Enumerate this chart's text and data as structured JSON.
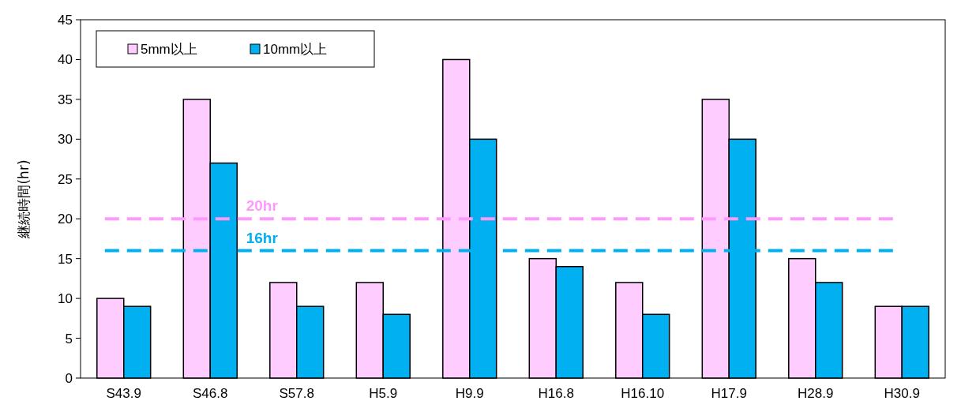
{
  "chart_data": {
    "type": "bar",
    "ylabel": "継続時間(hr)",
    "categories": [
      "S43.9",
      "S46.8",
      "S57.8",
      "H5.9",
      "H9.9",
      "H16.8",
      "H16.10",
      "H17.9",
      "H28.9",
      "H30.9"
    ],
    "series": [
      {
        "name": "5mm以上",
        "color": "#ffccff",
        "values": [
          10,
          35,
          12,
          12,
          40,
          15,
          12,
          35,
          15,
          9
        ]
      },
      {
        "name": "10mm以上",
        "color": "#00b0f0",
        "values": [
          9,
          27,
          9,
          8,
          30,
          14,
          8,
          30,
          12,
          9
        ]
      }
    ],
    "ylim": [
      0,
      45
    ],
    "yticks": [
      0,
      5,
      10,
      15,
      20,
      25,
      30,
      35,
      40,
      45
    ],
    "grid": false,
    "legend": "top left",
    "ref_lines": [
      {
        "axis": "y",
        "value": 20,
        "label": "20hr",
        "color": "#ff99ff",
        "line_style": "dashed"
      },
      {
        "axis": "y",
        "value": 16,
        "label": "16hr",
        "color": "#00b0f0",
        "line_style": "dashed"
      }
    ]
  }
}
